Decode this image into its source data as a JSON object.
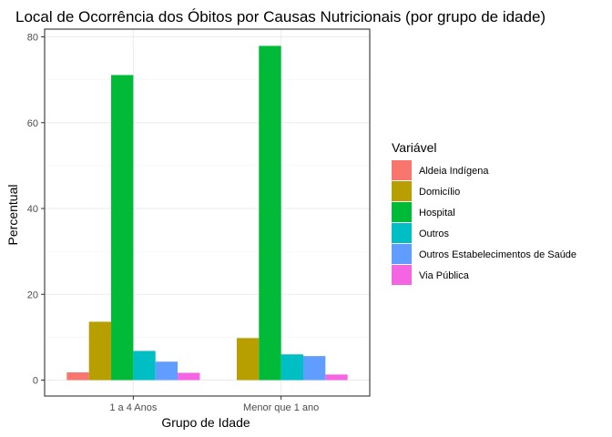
{
  "chart_data": {
    "type": "bar",
    "title": "Local de Ocorrência dos Óbitos por Causas Nutricionais (por grupo de idade)",
    "xlabel": "Grupo de Idade",
    "ylabel": "Percentual",
    "categories": [
      "1 a 4 Anos",
      "Menor que 1 ano"
    ],
    "ylim": [
      0,
      82
    ],
    "yticks": [
      0,
      20,
      40,
      60,
      80
    ],
    "grid": true,
    "legend": {
      "title": "Variável",
      "position": "right"
    },
    "series": [
      {
        "name": "Aldeia Indígena",
        "color": "#F8766D",
        "values": [
          1.8,
          0
        ]
      },
      {
        "name": "Domicílio",
        "color": "#B79F00",
        "values": [
          13.6,
          9.8
        ]
      },
      {
        "name": "Hospital",
        "color": "#00BA38",
        "values": [
          71.1,
          77.9
        ]
      },
      {
        "name": "Outros",
        "color": "#00BFC4",
        "values": [
          6.8,
          6.0
        ]
      },
      {
        "name": "Outros Estabelecimentos de Saúde",
        "color": "#619CFF",
        "values": [
          4.3,
          5.6
        ]
      },
      {
        "name": "Via Pública",
        "color": "#F564E3",
        "values": [
          1.7,
          1.3
        ]
      }
    ]
  }
}
